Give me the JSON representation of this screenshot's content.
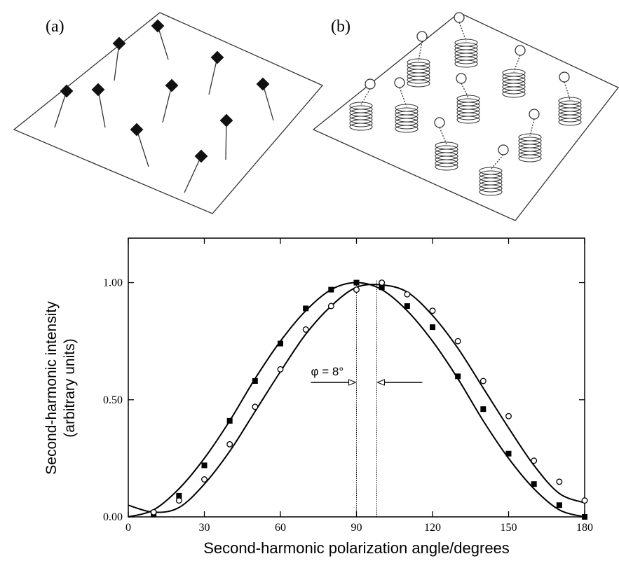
{
  "panels": {
    "a": {
      "label": "(a)"
    },
    "b": {
      "label": "(b)"
    }
  },
  "chart_data": {
    "type": "scatter",
    "xlabel": "Second-harmonic polarization angle/degrees",
    "ylabel": [
      "Second-harmonic intensity",
      "(arbitrary units)"
    ],
    "xlim": [
      0,
      180
    ],
    "xticks": [
      0,
      30,
      60,
      90,
      120,
      150,
      180
    ],
    "ylim": [
      0,
      1.19
    ],
    "yticks": [
      {
        "value": 0,
        "label": "0.00"
      },
      {
        "value": 0.5,
        "label": "0.50"
      },
      {
        "value": 1,
        "label": "1.00"
      }
    ],
    "reference_lines": [
      90,
      98
    ],
    "annotation": "φ = 8°",
    "series": [
      {
        "marker": "square",
        "color": "#000000",
        "x": [
          10,
          20,
          30,
          40,
          50,
          60,
          70,
          80,
          90,
          100,
          110,
          120,
          130,
          140,
          150,
          160,
          170,
          180
        ],
        "values": [
          0.01,
          0.09,
          0.22,
          0.41,
          0.58,
          0.74,
          0.89,
          0.97,
          1.0,
          0.98,
          0.9,
          0.81,
          0.6,
          0.46,
          0.27,
          0.14,
          0.05,
          0.0
        ]
      },
      {
        "marker": "circle",
        "color": "#000000",
        "x": [
          10,
          20,
          30,
          40,
          50,
          60,
          70,
          80,
          90,
          100,
          110,
          120,
          130,
          140,
          150,
          160,
          170,
          180
        ],
        "values": [
          0.02,
          0.07,
          0.16,
          0.31,
          0.47,
          0.63,
          0.8,
          0.9,
          0.97,
          1.0,
          0.95,
          0.88,
          0.75,
          0.58,
          0.43,
          0.24,
          0.15,
          0.07
        ]
      },
      {
        "marker": "line",
        "color": "#000000",
        "x": [
          0,
          10,
          20,
          30,
          40,
          50,
          60,
          70,
          80,
          90,
          100,
          110,
          120,
          130,
          140,
          150,
          160,
          170,
          180
        ],
        "values": [
          0.0,
          0.03,
          0.12,
          0.25,
          0.41,
          0.59,
          0.75,
          0.88,
          0.97,
          1.0,
          0.97,
          0.88,
          0.75,
          0.59,
          0.41,
          0.25,
          0.12,
          0.03,
          0.0
        ]
      },
      {
        "marker": "line",
        "color": "#000000",
        "x": [
          0,
          10,
          20,
          30,
          40,
          50,
          60,
          70,
          80,
          90,
          100,
          110,
          120,
          130,
          140,
          150,
          160,
          170,
          180
        ],
        "values": [
          0.05,
          0.02,
          0.04,
          0.14,
          0.28,
          0.45,
          0.62,
          0.78,
          0.9,
          0.98,
          0.99,
          0.96,
          0.86,
          0.72,
          0.55,
          0.38,
          0.22,
          0.1,
          0.06
        ]
      }
    ]
  }
}
